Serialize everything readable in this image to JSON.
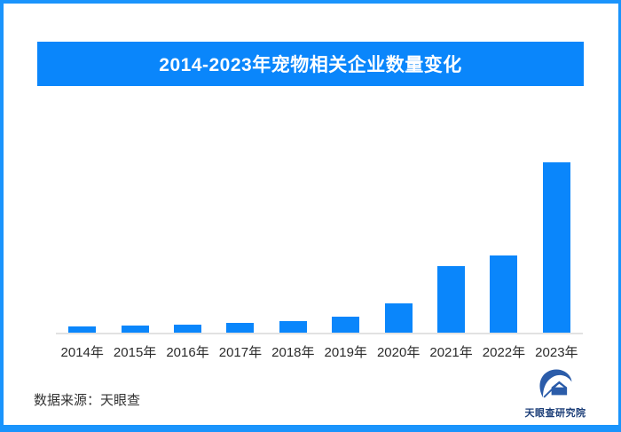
{
  "page": {
    "border_color": "#1a94fc",
    "background_color": "#ffffff"
  },
  "header": {
    "title": "2014-2023年宠物相关企业数量变化",
    "banner_color": "#0a86fb",
    "title_color": "#ffffff"
  },
  "chart_data": {
    "type": "bar",
    "title": "2014-2023年宠物相关企业数量变化",
    "categories": [
      "2014年",
      "2015年",
      "2016年",
      "2017年",
      "2018年",
      "2019年",
      "2020年",
      "2021年",
      "2022年",
      "2023年"
    ],
    "values": [
      7,
      8,
      9,
      11,
      13,
      18,
      33,
      75,
      87,
      192
    ],
    "values_unit": "relative bar heights in rendered pixels; chart displays no y-axis, gridlines or data labels",
    "bar_color": "#0a86fb",
    "axis_line_color": "#e2e2e2",
    "xlabel": "",
    "ylabel": "",
    "grid": "off",
    "legend": "none",
    "y_axis": "hidden"
  },
  "footer": {
    "source_label": "数据来源：天眼查",
    "source_color": "#333333",
    "brand_name": "天眼查研究院",
    "brand_text_color": "#1c3e78",
    "logo_color": "#2b5ca9"
  }
}
